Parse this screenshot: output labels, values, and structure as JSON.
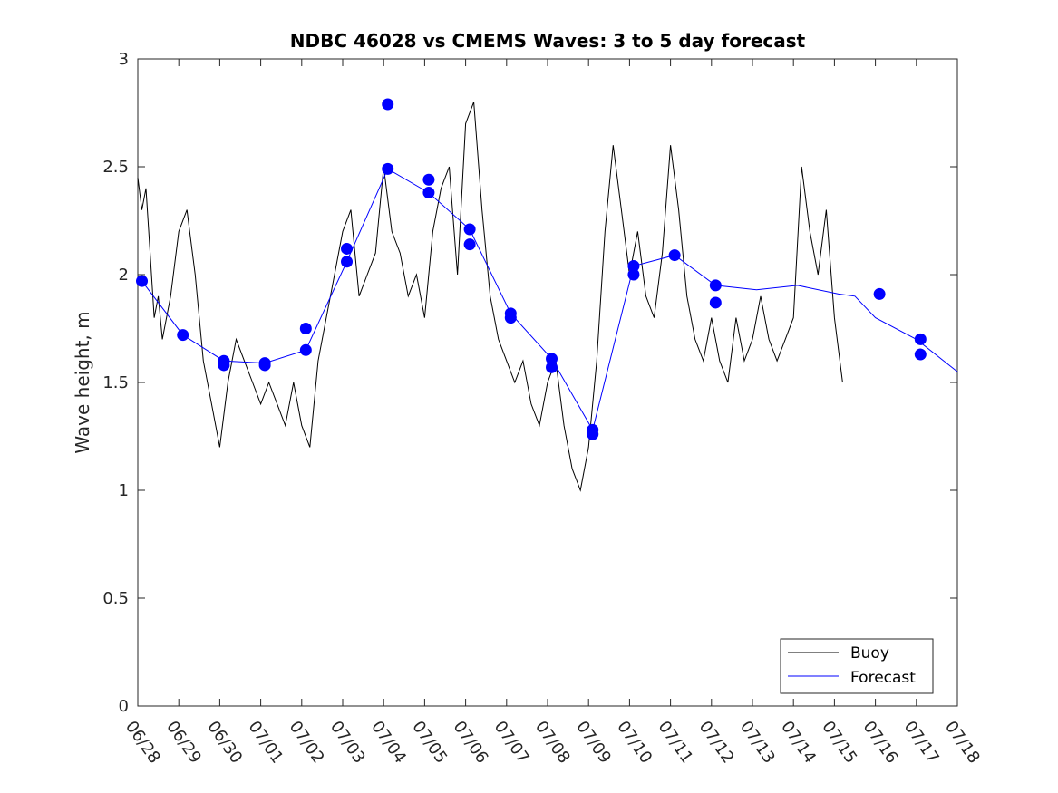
{
  "chart_data": {
    "type": "line",
    "title": "NDBC 46028 vs CMEMS Waves: 3 to 5 day forecast",
    "xlabel": "",
    "ylabel": "Wave height, m",
    "x_ticks": [
      "06/28",
      "06/29",
      "06/30",
      "07/01",
      "07/02",
      "07/03",
      "07/04",
      "07/05",
      "07/06",
      "07/07",
      "07/08",
      "07/09",
      "07/10",
      "07/11",
      "07/12",
      "07/13",
      "07/14",
      "07/15",
      "07/16",
      "07/17",
      "07/18"
    ],
    "y_ticks": [
      "0",
      "0.5",
      "1",
      "1.5",
      "2",
      "2.5",
      "3"
    ],
    "xlim_days": [
      0,
      20
    ],
    "ylim": [
      0,
      3
    ],
    "grid": false,
    "legend_position": "bottom-right",
    "legend": [
      "Buoy",
      "Forecast"
    ],
    "colors": {
      "buoy": "#000000",
      "forecast": "#0000ff",
      "marker": "#0000ff"
    },
    "series": [
      {
        "name": "Buoy",
        "x": [
          0.0,
          0.1,
          0.2,
          0.3,
          0.4,
          0.5,
          0.6,
          0.8,
          1.0,
          1.2,
          1.4,
          1.6,
          1.8,
          2.0,
          2.2,
          2.4,
          2.6,
          2.8,
          3.0,
          3.2,
          3.4,
          3.6,
          3.8,
          4.0,
          4.2,
          4.4,
          4.6,
          4.8,
          5.0,
          5.2,
          5.4,
          5.6,
          5.8,
          6.0,
          6.2,
          6.4,
          6.6,
          6.8,
          7.0,
          7.2,
          7.4,
          7.6,
          7.8,
          8.0,
          8.2,
          8.4,
          8.6,
          8.8,
          9.0,
          9.2,
          9.4,
          9.6,
          9.8,
          10.0,
          10.2,
          10.4,
          10.6,
          10.8,
          11.0,
          11.2,
          11.4,
          11.6,
          11.8,
          12.0,
          12.2,
          12.4,
          12.6,
          12.8,
          13.0,
          13.2,
          13.4,
          13.6,
          13.8,
          14.0,
          14.2,
          14.4,
          14.6,
          14.8,
          15.0,
          15.2,
          15.4,
          15.6,
          15.8,
          16.0,
          16.2,
          16.4,
          16.6,
          16.8,
          17.0,
          17.2
        ],
        "y": [
          2.45,
          2.3,
          2.4,
          2.1,
          1.8,
          1.9,
          1.7,
          1.9,
          2.2,
          2.3,
          2.0,
          1.6,
          1.4,
          1.2,
          1.5,
          1.7,
          1.6,
          1.5,
          1.4,
          1.5,
          1.4,
          1.3,
          1.5,
          1.3,
          1.2,
          1.6,
          1.8,
          2.0,
          2.2,
          2.3,
          1.9,
          2.0,
          2.1,
          2.5,
          2.2,
          2.1,
          1.9,
          2.0,
          1.8,
          2.2,
          2.4,
          2.5,
          2.0,
          2.7,
          2.8,
          2.3,
          1.9,
          1.7,
          1.6,
          1.5,
          1.6,
          1.4,
          1.3,
          1.5,
          1.6,
          1.3,
          1.1,
          1.0,
          1.2,
          1.6,
          2.2,
          2.6,
          2.3,
          2.0,
          2.2,
          1.9,
          1.8,
          2.1,
          2.6,
          2.3,
          1.9,
          1.7,
          1.6,
          1.8,
          1.6,
          1.5,
          1.8,
          1.6,
          1.7,
          1.9,
          1.7,
          1.6,
          1.7,
          1.8,
          2.5,
          2.2,
          2.0,
          2.3,
          1.8,
          1.5
        ]
      },
      {
        "name": "Forecast",
        "x": [
          0.1,
          1.1,
          2.1,
          3.1,
          4.1,
          5.1,
          6.1,
          7.1,
          8.1,
          9.1,
          10.1,
          11.1,
          12.1,
          13.1,
          14.1,
          15.1,
          16.1,
          17.1,
          17.5,
          18.0,
          19.0,
          20.0
        ],
        "y": [
          1.97,
          1.72,
          1.6,
          1.59,
          1.65,
          2.06,
          2.49,
          2.38,
          2.21,
          1.82,
          1.61,
          1.28,
          2.04,
          2.09,
          1.95,
          1.93,
          1.95,
          1.91,
          1.9,
          1.8,
          1.7,
          1.55
        ]
      }
    ],
    "forecast_markers": {
      "x": [
        0.1,
        1.1,
        2.1,
        2.1,
        3.1,
        3.1,
        4.1,
        4.1,
        5.1,
        5.1,
        6.1,
        6.1,
        7.1,
        7.1,
        8.1,
        8.1,
        9.1,
        9.1,
        10.1,
        10.1,
        11.1,
        11.1,
        12.1,
        12.1,
        13.1,
        14.1,
        14.1,
        18.1,
        19.1,
        19.1
      ],
      "y": [
        1.97,
        1.72,
        1.6,
        1.58,
        1.59,
        1.58,
        1.75,
        1.65,
        2.12,
        2.06,
        2.79,
        2.49,
        2.44,
        2.38,
        2.21,
        2.14,
        1.82,
        1.8,
        1.61,
        1.57,
        1.28,
        1.26,
        2.04,
        2.0,
        2.09,
        1.95,
        1.87,
        1.91,
        1.7,
        1.63
      ]
    }
  }
}
